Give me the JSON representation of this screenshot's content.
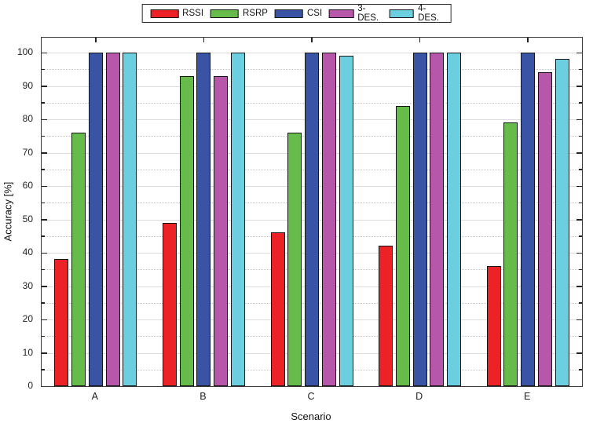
{
  "chart_data": {
    "type": "bar",
    "title": "",
    "categories": [
      "A",
      "B",
      "C",
      "D",
      "E"
    ],
    "series": [
      {
        "name": "RSSI",
        "color": "#ec2227",
        "values": [
          38,
          49,
          46,
          42,
          36
        ]
      },
      {
        "name": "RSRP",
        "color": "#66bb4a",
        "values": [
          76,
          93,
          76,
          84,
          79
        ]
      },
      {
        "name": "CSI",
        "color": "#3a54a5",
        "values": [
          100,
          100,
          100,
          100,
          100
        ]
      },
      {
        "name": "3-DES.",
        "color": "#b657a9",
        "values": [
          100,
          93,
          100,
          100,
          94
        ]
      },
      {
        "name": "4-DES.",
        "color": "#6bcfdf",
        "values": [
          100,
          100,
          99,
          100,
          98
        ]
      }
    ],
    "xlabel": "Scenario",
    "ylabel": "Accuracy [%]",
    "ylim": [
      0,
      100
    ],
    "y_major_step": 10,
    "y_minor_step": 5,
    "y_tick_labels": [
      "0",
      "10",
      "20",
      "30",
      "40",
      "50",
      "60",
      "70",
      "80",
      "90",
      "100"
    ],
    "grid": true,
    "legend_position": "top-center"
  },
  "colors": {
    "background": "#ffffff",
    "axis_border": "#3a3a3a",
    "grid_major": "#dcdcdc",
    "grid_minor": "#c4c4c4",
    "bar_border": "#141414",
    "text": "#1a1a1a"
  }
}
